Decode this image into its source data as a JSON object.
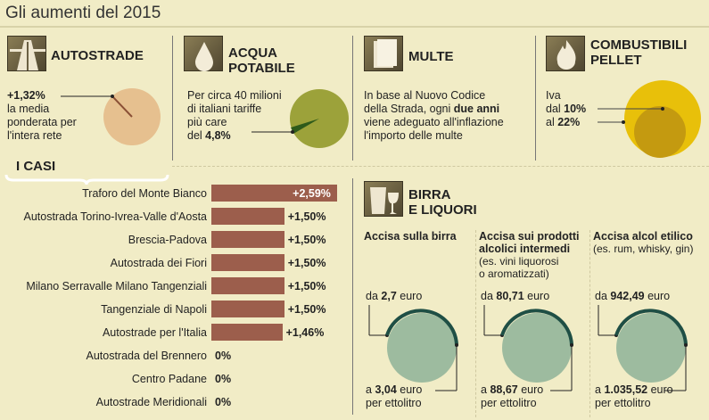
{
  "title": "Gli aumenti del 2015",
  "autostrade": {
    "heading": "AUTOSTRADE",
    "value": "+1,32%",
    "text": [
      "la media",
      "ponderata per",
      "l'intera rete"
    ],
    "icon": "highway-icon",
    "color": "#e6c08f"
  },
  "acqua": {
    "heading1": "ACQUA",
    "heading2": "POTABILE",
    "text": [
      "Per circa 40 milioni",
      "di italiani tariffe",
      "più care"
    ],
    "prefix": "del ",
    "value": "4,8%",
    "icon": "water-drop-icon",
    "color": "#9ca23a"
  },
  "multe": {
    "heading": "MULTE",
    "line1": "In base al Nuovo Codice",
    "line2a": "della Strada, ogni ",
    "line2b": "due anni",
    "line3": "viene adeguato all'inflazione",
    "line4": "l'importo delle multe",
    "icon": "document-icon"
  },
  "pellet": {
    "heading1": "COMBUSTIBILI",
    "heading2": "PELLET",
    "iva": "Iva",
    "from_prefix": "dal ",
    "from": "10%",
    "to_prefix": "al ",
    "to": "22%",
    "icon": "flame-icon",
    "colors": [
      "#e8c00a",
      "#c49a10"
    ]
  },
  "casi": {
    "heading": "I CASI"
  },
  "chart_data": {
    "type": "bar",
    "orientation": "horizontal",
    "categories": [
      "Traforo del Monte Bianco",
      "Autostrada Torino-Ivrea-Valle d'Aosta",
      "Brescia-Padova",
      "Autostrada dei Fiori",
      "Milano Serravalle Milano Tangenziali",
      "Tangenziale di Napoli",
      "Autostrade per l'Italia",
      "Autostrada del Brennero",
      "Centro Padane",
      "Autostrade Meridionali"
    ],
    "values": [
      2.59,
      1.5,
      1.5,
      1.5,
      1.5,
      1.5,
      1.46,
      0,
      0,
      0
    ],
    "labels": [
      "+2,59%",
      "+1,50%",
      "+1,50%",
      "+1,50%",
      "+1,50%",
      "+1,50%",
      "+1,46%",
      "0%",
      "0%",
      "0%"
    ],
    "color": "#9c5e4c"
  },
  "birra": {
    "heading1": "BIRRA",
    "heading2": "E LIQUORI",
    "icon": "glasses-icon",
    "cols": [
      {
        "title": [
          "Accisa sulla birra"
        ],
        "note": [],
        "from": "2,7",
        "to": "3,04"
      },
      {
        "title": [
          "Accisa sui prodotti",
          "alcolici intermedi"
        ],
        "note": [
          "(es. vini liquorosi",
          "o aromatizzati)"
        ],
        "from": "80,71",
        "to": "88,67"
      },
      {
        "title": [
          "Accisa alcol etilico"
        ],
        "note": [
          "(es. rum, whisky, gin)"
        ],
        "from": "942,49",
        "to": "1.035,52"
      }
    ],
    "da": "da ",
    "a": "a ",
    "euro": " euro",
    "per": "per ettolitro",
    "fill": "#9dbb9f",
    "stroke": "#1f4f45"
  }
}
